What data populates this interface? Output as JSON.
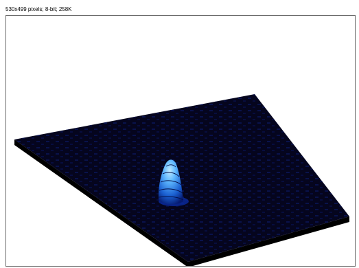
{
  "image_info": "530x499 pixels; 8-bit; 258K",
  "surface_plot": {
    "surface_color": "#05051e",
    "side_color": "#000000",
    "noise_color": "#0a1a6e",
    "peak_color_high": "#7fd8ff",
    "peak_color_mid": "#1f7fe0",
    "peak_color_low": "#0a2aa0",
    "frame_border_color": "#6a6a6a"
  }
}
